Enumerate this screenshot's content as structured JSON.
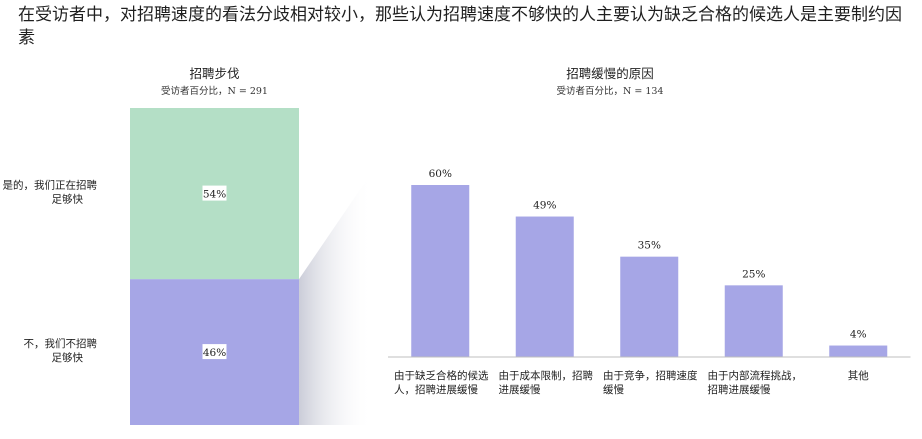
{
  "headline": "在受访者中，对招聘速度的看法分歧相对较小，那些认为招聘速度不够快的人主要认为缺乏合格的候选人是主要制约因素",
  "chart_data": [
    {
      "type": "bar",
      "stacked": true,
      "title": "招聘步伐",
      "subtitle": "受访者百分比，N = 291",
      "categories": [
        "是的，我们正在招聘足够快",
        "不，我们不招聘足够快"
      ],
      "values": [
        54,
        46
      ],
      "value_labels": [
        "54%",
        "46%"
      ],
      "colors": [
        "#b4dfc6",
        "#a6a6e6"
      ]
    },
    {
      "type": "bar",
      "title": "招聘缓慢的原因",
      "subtitle": "受访者百分比，N = 134",
      "categories": [
        "由于缺乏合格的候选人，招聘进展缓慢",
        "由于成本限制，招聘进展缓慢",
        "由于竞争，招聘速度缓慢",
        "由于内部流程挑战，招聘进展缓慢",
        "其他"
      ],
      "values": [
        60,
        49,
        35,
        25,
        4
      ],
      "value_labels": [
        "60%",
        "49%",
        "35%",
        "25%",
        "4%"
      ],
      "ylim": [
        0,
        60
      ],
      "color": "#a6a6e6"
    }
  ]
}
